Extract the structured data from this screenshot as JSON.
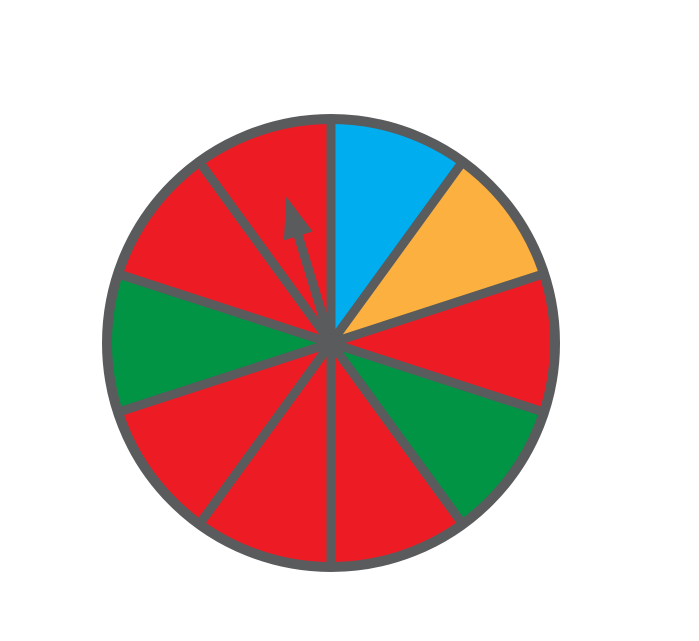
{
  "spinner": {
    "outline_color": "#5a5b5d",
    "sectors": [
      {
        "color": "#00aeef"
      },
      {
        "color": "#fbb040"
      },
      {
        "color": "#ed1c24"
      },
      {
        "color": "#009444"
      },
      {
        "color": "#ed1c24"
      },
      {
        "color": "#ed1c24"
      },
      {
        "color": "#ed1c24"
      },
      {
        "color": "#009444"
      },
      {
        "color": "#ed1c24"
      },
      {
        "color": "#ed1c24"
      }
    ]
  }
}
